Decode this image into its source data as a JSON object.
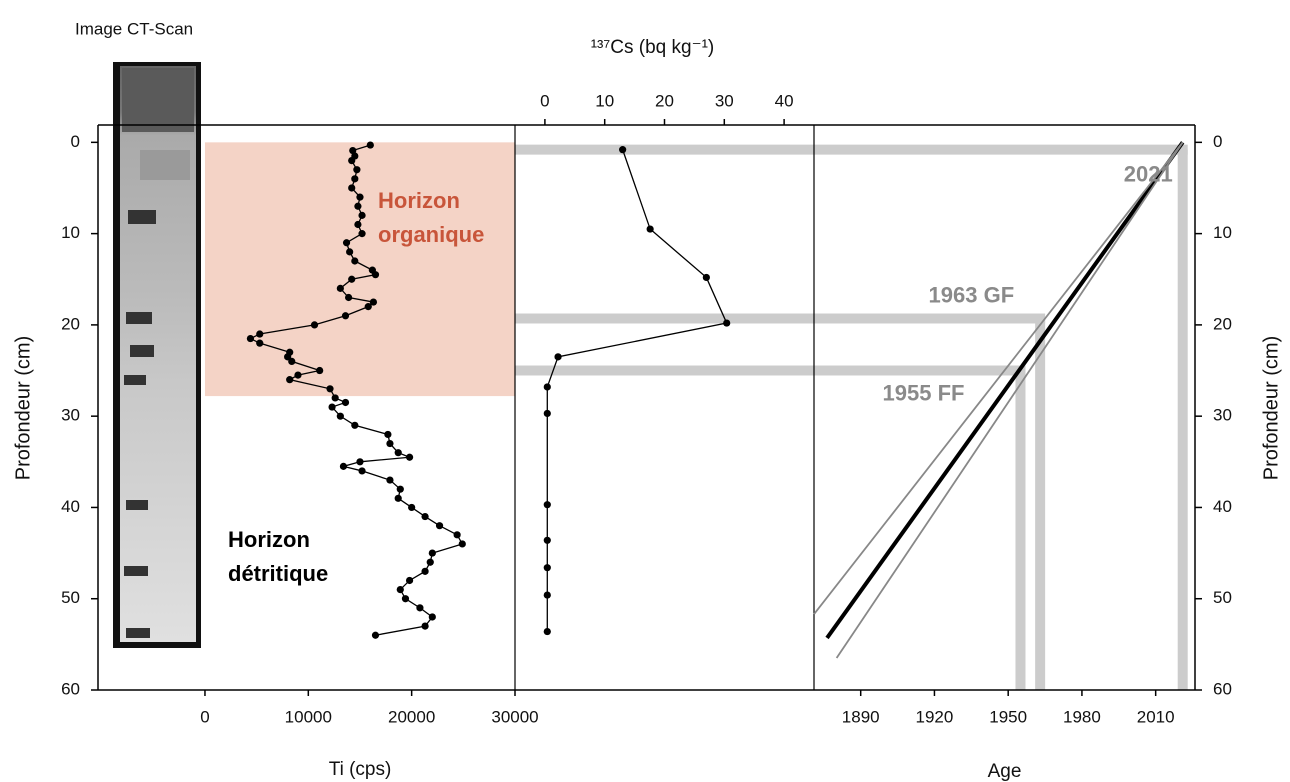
{
  "ct_scan": {
    "title": "Image CT-Scan"
  },
  "depth_axis": {
    "label": "Profondeur (cm)",
    "ylim": [
      -1.9,
      60
    ],
    "inverted": true,
    "yticks": [
      0,
      10,
      20,
      30,
      40,
      50,
      60
    ]
  },
  "chart_data": [
    {
      "type": "line",
      "xlabel": "Ti (cps)",
      "color": "#000000",
      "xlim": [
        -10350,
        30000
      ],
      "xticks": [
        0,
        10000,
        20000,
        30000
      ],
      "y": [
        0.3,
        0.9,
        1.5,
        2,
        3,
        4,
        5,
        6,
        7,
        8,
        9,
        10,
        11,
        12,
        13,
        14,
        14.5,
        15,
        16,
        17,
        17.5,
        18,
        19,
        20,
        21,
        21.5,
        22,
        23,
        23.5,
        24,
        25,
        25.5,
        26,
        27,
        28,
        28.5,
        29,
        30,
        31,
        32,
        33,
        34,
        34.5,
        35,
        35.5,
        36,
        37,
        38,
        39,
        40,
        41,
        42,
        43,
        44,
        45,
        46,
        47,
        48,
        49,
        50,
        51,
        52,
        53,
        54
      ],
      "x": [
        16000,
        14300,
        14500,
        14200,
        14700,
        14500,
        14200,
        15000,
        14800,
        15200,
        14800,
        15200,
        13700,
        14000,
        14500,
        16200,
        16500,
        14200,
        13100,
        13900,
        16300,
        15800,
        13600,
        10600,
        5300,
        4400,
        5300,
        8200,
        8000,
        8400,
        11100,
        9000,
        8200,
        12100,
        12600,
        13600,
        12300,
        13100,
        14500,
        17700,
        17900,
        18700,
        19800,
        15000,
        13400,
        15200,
        17900,
        18900,
        18700,
        20000,
        21300,
        22700,
        24400,
        24900,
        22000,
        21800,
        21300,
        19800,
        18900,
        19400,
        20800,
        22000,
        21300,
        16500
      ],
      "shaded": {
        "xlim": [
          0,
          30000
        ],
        "ylim": [
          0,
          27.8
        ],
        "color": "#f4d3c6"
      },
      "annotations": [
        {
          "text": [
            "Horizon",
            "organique"
          ],
          "color": "#c8553a"
        },
        {
          "text": [
            "Horizon",
            "détritique"
          ],
          "color": "#000000"
        }
      ]
    },
    {
      "type": "line",
      "xlabel": "¹³⁷Cs (bq kg⁻¹)",
      "color": "#000000",
      "xlim": [
        -5,
        45
      ],
      "xticks": [
        0,
        10,
        20,
        30,
        40
      ],
      "y": [
        0.8,
        9.5,
        14.8,
        19.8,
        23.5,
        26.8,
        29.7,
        39.7,
        43.6,
        46.6,
        49.6,
        53.6
      ],
      "x": [
        13,
        17.6,
        27,
        30.4,
        2.2,
        0.4,
        0.4,
        0.4,
        0.4,
        0.4,
        0.4,
        0.4
      ]
    },
    {
      "type": "age",
      "xlabel": "Age",
      "xlim": [
        1871,
        2026
      ],
      "xticks": [
        1890,
        1920,
        1950,
        1980,
        2010
      ],
      "marker_color": "#cccccc",
      "label_color": "#8a8a8a",
      "markers": [
        {
          "label": "2021",
          "age": 2021,
          "depth": 0.8
        },
        {
          "label": "1963 GF",
          "age": 1963,
          "depth": 19.3
        },
        {
          "label": "1955 FF",
          "age": 1955,
          "depth": 25
        }
      ],
      "model": [
        {
          "x": [
            2021,
            1876.3
          ],
          "y": [
            0,
            54.3
          ],
          "color": "#000000"
        },
        {
          "x": [
            2021,
            1871
          ],
          "y": [
            0,
            51.7
          ],
          "color": "#888888"
        },
        {
          "x": [
            2021,
            1880.2
          ],
          "y": [
            0,
            56.5
          ],
          "color": "#888888"
        }
      ]
    }
  ]
}
